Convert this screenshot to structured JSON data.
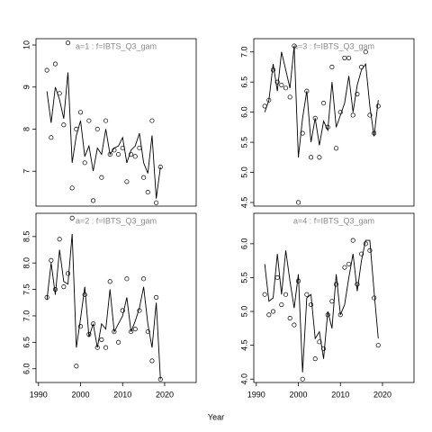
{
  "xlabel": "Year",
  "chart_data": [
    {
      "type": "line",
      "title": "a=1  :  f=IBTS_Q3_gam",
      "x": [
        1992,
        1993,
        1994,
        1995,
        1996,
        1997,
        1998,
        1999,
        2000,
        2001,
        2002,
        2003,
        2004,
        2005,
        2006,
        2007,
        2008,
        2009,
        2010,
        2011,
        2012,
        2013,
        2014,
        2015,
        2016,
        2017,
        2018,
        2019
      ],
      "series": [
        {
          "style": "points",
          "color": "#000000",
          "values": [
            9.4,
            7.8,
            9.55,
            8.85,
            8.1,
            10.05,
            6.6,
            8.0,
            8.4,
            7.2,
            8.2,
            6.3,
            8.0,
            6.85,
            8.2,
            7.4,
            7.5,
            7.4,
            7.55,
            6.75,
            7.4,
            7.35,
            7.55,
            6.85,
            6.5,
            8.2,
            6.25,
            7.1
          ]
        },
        {
          "style": "line",
          "color": "#000000",
          "values": [
            8.9,
            8.15,
            9.0,
            8.7,
            8.25,
            9.35,
            7.2,
            7.85,
            8.2,
            7.35,
            7.6,
            7.0,
            7.55,
            7.4,
            8.0,
            7.4,
            7.55,
            7.6,
            7.8,
            7.2,
            7.5,
            7.6,
            7.9,
            7.2,
            6.95,
            7.85,
            6.35,
            7.1
          ]
        }
      ],
      "xlim": [
        1989.4,
        2027.5
      ],
      "ylim": [
        6.17,
        10.15
      ],
      "yticks": [
        7,
        8,
        9,
        10
      ]
    },
    {
      "type": "line",
      "title": "a=3  :  f=IBTS_Q3_gam",
      "x": [
        1992,
        1993,
        1994,
        1995,
        1996,
        1997,
        1998,
        1999,
        2000,
        2001,
        2002,
        2003,
        2004,
        2005,
        2006,
        2007,
        2008,
        2009,
        2010,
        2011,
        2012,
        2013,
        2014,
        2015,
        2016,
        2017,
        2018,
        2019
      ],
      "series": [
        {
          "style": "points",
          "color": "#000000",
          "values": [
            6.1,
            6.2,
            6.7,
            6.5,
            6.45,
            6.4,
            6.25,
            7.1,
            4.5,
            5.65,
            6.35,
            5.25,
            5.9,
            5.25,
            6.15,
            5.75,
            6.75,
            5.4,
            6.0,
            6.9,
            6.9,
            5.95,
            6.3,
            6.75,
            7.0,
            5.95,
            5.65,
            6.1
          ]
        },
        {
          "style": "line",
          "color": "#000000",
          "values": [
            6.0,
            6.2,
            6.8,
            6.35,
            7.0,
            6.7,
            6.4,
            7.1,
            5.25,
            5.9,
            6.35,
            5.5,
            5.9,
            5.45,
            5.85,
            5.7,
            6.5,
            5.75,
            5.95,
            6.15,
            6.6,
            6.0,
            6.45,
            6.7,
            6.8,
            6.1,
            5.6,
            6.2
          ]
        }
      ],
      "xlim": [
        1989.4,
        2027.5
      ],
      "ylim": [
        4.44,
        7.22
      ],
      "yticks": [
        {
          "value": 4.5,
          "label": "4.5"
        },
        {
          "value": 5,
          "label": "5.0"
        },
        {
          "value": 5.5,
          "label": "5.5"
        },
        {
          "value": 6,
          "label": "6.0"
        },
        {
          "value": 6.5,
          "label": "6.5"
        },
        {
          "value": 7,
          "label": "7.0"
        }
      ]
    },
    {
      "type": "line",
      "title": "a=2  :  f=IBTS_Q3_gam",
      "x": [
        1992,
        1993,
        1994,
        1995,
        1996,
        1997,
        1998,
        1999,
        2000,
        2001,
        2002,
        2003,
        2004,
        2005,
        2006,
        2007,
        2008,
        2009,
        2010,
        2011,
        2012,
        2013,
        2014,
        2015,
        2016,
        2017,
        2018,
        2019
      ],
      "series": [
        {
          "style": "points",
          "color": "#000000",
          "values": [
            7.35,
            8.05,
            7.5,
            8.45,
            7.55,
            7.8,
            8.85,
            6.05,
            6.8,
            7.4,
            6.65,
            6.85,
            6.4,
            6.55,
            6.4,
            7.65,
            6.7,
            6.5,
            7.1,
            7.7,
            6.7,
            6.75,
            7.1,
            7.7,
            6.7,
            6.15,
            7.35,
            5.8
          ]
        },
        {
          "style": "line",
          "color": "#000000",
          "values": [
            7.3,
            8.0,
            7.4,
            8.25,
            7.65,
            7.6,
            8.55,
            6.4,
            6.95,
            7.55,
            6.6,
            6.85,
            6.4,
            6.85,
            6.75,
            7.5,
            6.7,
            6.85,
            7.0,
            7.35,
            6.7,
            6.9,
            7.15,
            7.55,
            6.85,
            6.4,
            7.25,
            5.8
          ]
        }
      ],
      "xlim": [
        1989.4,
        2027.5
      ],
      "ylim": [
        5.74,
        8.94
      ],
      "xticks": [
        1990,
        2000,
        2010,
        2020
      ],
      "yticks": [
        {
          "value": 6,
          "label": "6.0"
        },
        {
          "value": 6.5,
          "label": "6.5"
        },
        {
          "value": 7,
          "label": "7.0"
        },
        {
          "value": 7.5,
          "label": "7.5"
        },
        {
          "value": 8,
          "label": "8.0"
        },
        {
          "value": 8.5,
          "label": "8.5"
        }
      ]
    },
    {
      "type": "line",
      "title": "a=4  :  f=IBTS_Q3_gam",
      "x": [
        1992,
        1993,
        1994,
        1995,
        1996,
        1997,
        1998,
        1999,
        2000,
        2001,
        2002,
        2003,
        2004,
        2005,
        2006,
        2007,
        2008,
        2009,
        2010,
        2011,
        2012,
        2013,
        2014,
        2015,
        2016,
        2017,
        2018,
        2019
      ],
      "series": [
        {
          "style": "points",
          "color": "#000000",
          "values": [
            5.25,
            4.95,
            5.0,
            5.5,
            5.1,
            5.25,
            4.9,
            4.8,
            5.45,
            4.0,
            5.25,
            5.1,
            4.3,
            4.55,
            4.45,
            4.95,
            5.15,
            5.4,
            4.95,
            5.65,
            5.7,
            6.05,
            5.4,
            5.85,
            6.0,
            5.9,
            5.2,
            4.5
          ]
        },
        {
          "style": "line",
          "color": "#000000",
          "values": [
            5.7,
            5.15,
            5.2,
            5.85,
            5.25,
            5.9,
            5.45,
            5.05,
            5.55,
            4.1,
            5.2,
            5.25,
            4.6,
            4.7,
            4.3,
            5.0,
            4.75,
            5.55,
            4.95,
            5.1,
            5.5,
            5.85,
            5.3,
            5.75,
            6.05,
            6.05,
            5.3,
            4.6
          ]
        }
      ],
      "xlim": [
        1989.4,
        2027.5
      ],
      "ylim": [
        3.95,
        6.45
      ],
      "xticks": [
        1990,
        2000,
        2010,
        2020
      ],
      "yticks": [
        {
          "value": 4,
          "label": "4.0"
        },
        {
          "value": 4.5,
          "label": "4.5"
        },
        {
          "value": 5,
          "label": "5.0"
        },
        {
          "value": 5.5,
          "label": "5.5"
        },
        {
          "value": 6,
          "label": "6.0"
        }
      ]
    }
  ]
}
